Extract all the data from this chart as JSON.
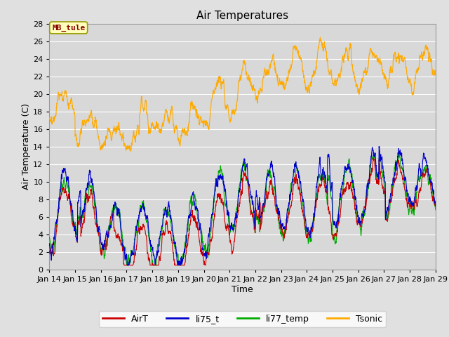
{
  "title": "Air Temperatures",
  "xlabel": "Time",
  "ylabel": "Air Temperature (C)",
  "ylim": [
    0,
    28
  ],
  "yticks": [
    0,
    2,
    4,
    6,
    8,
    10,
    12,
    14,
    16,
    18,
    20,
    22,
    24,
    26,
    28
  ],
  "xtick_labels": [
    "Jan 14",
    "Jan 15",
    "Jan 16",
    "Jan 17",
    "Jan 18",
    "Jan 19",
    "Jan 20",
    "Jan 21",
    "Jan 22",
    "Jan 23",
    "Jan 24",
    "Jan 25",
    "Jan 26",
    "Jan 27",
    "Jan 28",
    "Jan 29"
  ],
  "series_colors": {
    "AirT": "#cc0000",
    "li75_t": "#0000cc",
    "li77_temp": "#00aa00",
    "Tsonic": "#ffaa00"
  },
  "station_label": "MB_tule",
  "station_label_color": "#880000",
  "station_box_facecolor": "#ffffbb",
  "station_box_edgecolor": "#999900",
  "background_color": "#e0e0e0",
  "plot_bg_color": "#d8d8d8",
  "grid_color": "#ffffff",
  "title_fontsize": 11,
  "axis_label_fontsize": 9,
  "tick_label_fontsize": 8,
  "legend_fontsize": 9
}
